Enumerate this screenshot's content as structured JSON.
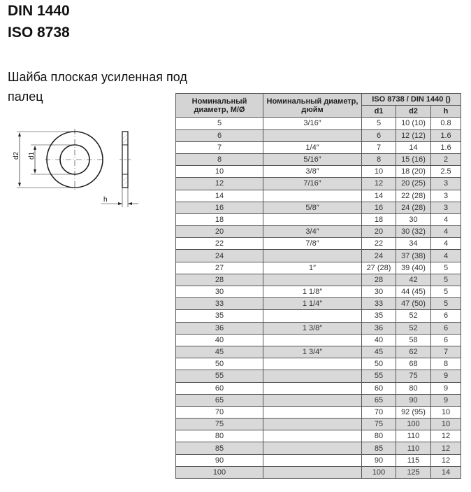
{
  "title1": "DIN 1440",
  "title2": "ISO 8738",
  "subtitle": "Шайба плоская усиленная под палец",
  "drawing": {
    "label_d2": "d2",
    "label_d1": "d1",
    "label_h": "h"
  },
  "table": {
    "header": {
      "col1": "Номинальный диаметр, М/Ø",
      "col2": "Номинальный диаметр, дюйм",
      "group": "ISO 8738 / DIN 1440 ()",
      "d1": "d1",
      "d2": "d2",
      "h": "h"
    },
    "rows": [
      [
        "5",
        "3/16″",
        "5",
        "10 (10)",
        "0.8"
      ],
      [
        "6",
        "",
        "6",
        "12 (12)",
        "1.6"
      ],
      [
        "7",
        "1/4″",
        "7",
        "14",
        "1.6"
      ],
      [
        "8",
        "5/16″",
        "8",
        "15 (16)",
        "2"
      ],
      [
        "10",
        "3/8″",
        "10",
        "18 (20)",
        "2.5"
      ],
      [
        "12",
        "7/16″",
        "12",
        "20 (25)",
        "3"
      ],
      [
        "14",
        "",
        "14",
        "22 (28)",
        "3"
      ],
      [
        "16",
        "5/8″",
        "16",
        "24 (28)",
        "3"
      ],
      [
        "18",
        "",
        "18",
        "30",
        "4"
      ],
      [
        "20",
        "3/4″",
        "20",
        "30 (32)",
        "4"
      ],
      [
        "22",
        "7/8″",
        "22",
        "34",
        "4"
      ],
      [
        "24",
        "",
        "24",
        "37 (38)",
        "4"
      ],
      [
        "27",
        "1″",
        "27 (28)",
        "39 (40)",
        "5"
      ],
      [
        "28",
        "",
        "28",
        "42",
        "5"
      ],
      [
        "30",
        "1 1/8″",
        "30",
        "44 (45)",
        "5"
      ],
      [
        "33",
        "1 1/4″",
        "33",
        "47 (50)",
        "5"
      ],
      [
        "35",
        "",
        "35",
        "52",
        "6"
      ],
      [
        "36",
        "1 3/8″",
        "36",
        "52",
        "6"
      ],
      [
        "40",
        "",
        "40",
        "58",
        "6"
      ],
      [
        "45",
        "1 3/4″",
        "45",
        "62",
        "7"
      ],
      [
        "50",
        "",
        "50",
        "68",
        "8"
      ],
      [
        "55",
        "",
        "55",
        "75",
        "9"
      ],
      [
        "60",
        "",
        "60",
        "80",
        "9"
      ],
      [
        "65",
        "",
        "65",
        "90",
        "9"
      ],
      [
        "70",
        "",
        "70",
        "92 (95)",
        "10"
      ],
      [
        "75",
        "",
        "75",
        "100",
        "10"
      ],
      [
        "80",
        "",
        "80",
        "110",
        "12"
      ],
      [
        "85",
        "",
        "85",
        "110",
        "12"
      ],
      [
        "90",
        "",
        "90",
        "115",
        "12"
      ],
      [
        "100",
        "",
        "100",
        "125",
        "14"
      ]
    ]
  }
}
